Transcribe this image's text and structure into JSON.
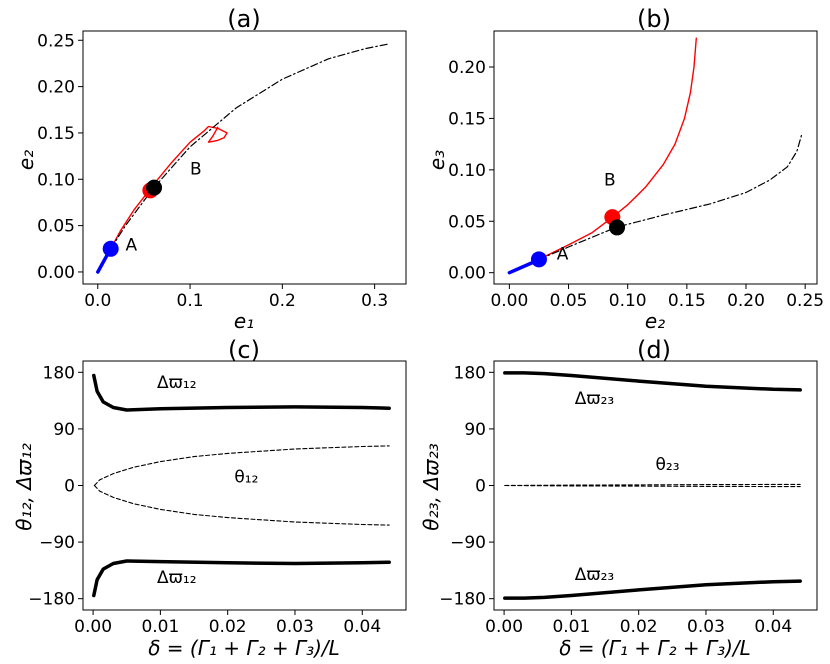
{
  "figure": {
    "panels": [
      {
        "id": "a",
        "title": "(a)",
        "xlabel": "e₁",
        "ylabel": "e₂",
        "xlim": [
          -0.016,
          0.334
        ],
        "ylim": [
          -0.013,
          0.26
        ],
        "xticks": [
          0.0,
          0.1,
          0.2,
          0.3
        ],
        "xtick_labels": [
          "0.0",
          "0.1",
          "0.2",
          "0.3"
        ],
        "yticks": [
          0.0,
          0.05,
          0.1,
          0.15,
          0.2,
          0.25
        ],
        "ytick_labels": [
          "0.00",
          "0.05",
          "0.10",
          "0.15",
          "0.20",
          "0.25"
        ],
        "annotations": [
          {
            "text": "A",
            "x": 0.03,
            "y": 0.023
          },
          {
            "text": "B",
            "x": 0.1,
            "y": 0.105
          }
        ]
      },
      {
        "id": "b",
        "title": "(b)",
        "xlabel": "e₂",
        "ylabel": "e₃",
        "xlim": [
          -0.013,
          0.26
        ],
        "ylim": [
          -0.011,
          0.235
        ],
        "xticks": [
          0.0,
          0.05,
          0.1,
          0.15,
          0.2,
          0.25
        ],
        "xtick_labels": [
          "0.00",
          "0.05",
          "0.10",
          "0.15",
          "0.20",
          "0.25"
        ],
        "yticks": [
          0.0,
          0.05,
          0.1,
          0.15,
          0.2
        ],
        "ytick_labels": [
          "0.00",
          "0.05",
          "0.10",
          "0.15",
          "0.20"
        ],
        "annotations": [
          {
            "text": "A",
            "x": 0.04,
            "y": 0.013
          },
          {
            "text": "B",
            "x": 0.08,
            "y": 0.085
          }
        ]
      },
      {
        "id": "c",
        "title": "(c)",
        "xlabel": "δ = (Γ₁ + Γ₂ + Γ₃)/L",
        "ylabel": "θ₁₂, Δϖ₁₂",
        "xlim": [
          -0.0015,
          0.0465
        ],
        "ylim": [
          -198,
          198
        ],
        "xticks": [
          0.0,
          0.01,
          0.02,
          0.03,
          0.04
        ],
        "xtick_labels": [
          "0.00",
          "0.01",
          "0.02",
          "0.03",
          "0.04"
        ],
        "yticks": [
          -180,
          -90,
          0,
          90,
          180
        ],
        "ytick_labels": [
          "−180",
          "−90",
          "0",
          "90",
          "180"
        ],
        "annotations": [
          {
            "text": "Δϖ₁₂",
            "x": 0.0095,
            "y": 155
          },
          {
            "text": "θ₁₂",
            "x": 0.021,
            "y": 5
          },
          {
            "text": "Δϖ₁₂",
            "x": 0.0095,
            "y": -155
          }
        ]
      },
      {
        "id": "d",
        "title": "(d)",
        "xlabel": "δ = (Γ₁ + Γ₂ + Γ₃)/L",
        "ylabel": "θ₂₃, Δϖ₂₃",
        "xlim": [
          -0.0015,
          0.0465
        ],
        "ylim": [
          -198,
          198
        ],
        "xticks": [
          0.0,
          0.01,
          0.02,
          0.03,
          0.04
        ],
        "xtick_labels": [
          "0.00",
          "0.01",
          "0.02",
          "0.03",
          "0.04"
        ],
        "yticks": [
          -180,
          -90,
          0,
          90,
          180
        ],
        "ytick_labels": [
          "−180",
          "−90",
          "0",
          "90",
          "180"
        ],
        "annotations": [
          {
            "text": "Δϖ₂₃",
            "x": 0.0105,
            "y": 130
          },
          {
            "text": "θ₂₃",
            "x": 0.0225,
            "y": 25
          },
          {
            "text": "Δϖ₂₃",
            "x": 0.0105,
            "y": -150
          }
        ]
      }
    ]
  },
  "chart_data": [
    {
      "type": "line",
      "panel": "a",
      "title": "(a)",
      "xlabel": "e1",
      "ylabel": "e2",
      "series": [
        {
          "name": "blue",
          "color": "#0000ff",
          "style": "solid-thick",
          "points": [
            [
              0.0,
              0.0
            ],
            [
              0.005,
              0.009
            ],
            [
              0.01,
              0.018
            ],
            [
              0.014,
              0.025
            ]
          ]
        },
        {
          "name": "red",
          "color": "#ff0000",
          "style": "solid",
          "points": [
            [
              0.014,
              0.025
            ],
            [
              0.025,
              0.045
            ],
            [
              0.04,
              0.068
            ],
            [
              0.055,
              0.087
            ],
            [
              0.065,
              0.1
            ],
            [
              0.08,
              0.118
            ],
            [
              0.1,
              0.14
            ],
            [
              0.115,
              0.152
            ],
            [
              0.12,
              0.157
            ],
            [
              0.13,
              0.155
            ],
            [
              0.14,
              0.15
            ],
            [
              0.137,
              0.145
            ],
            [
              0.13,
              0.142
            ],
            [
              0.12,
              0.14
            ],
            [
              0.125,
              0.147
            ],
            [
              0.13,
              0.156
            ]
          ]
        },
        {
          "name": "black dash-dot",
          "color": "#000000",
          "style": "dashdot",
          "points": [
            [
              0.014,
              0.025
            ],
            [
              0.03,
              0.05
            ],
            [
              0.06,
              0.09
            ],
            [
              0.1,
              0.135
            ],
            [
              0.15,
              0.177
            ],
            [
              0.2,
              0.208
            ],
            [
              0.25,
              0.23
            ],
            [
              0.29,
              0.241
            ],
            [
              0.315,
              0.246
            ]
          ]
        }
      ],
      "markers": [
        {
          "label": "A",
          "color": "#0000ff",
          "x": 0.014,
          "y": 0.025
        },
        {
          "label": "red",
          "color": "#ff0000",
          "x": 0.057,
          "y": 0.088
        },
        {
          "label": "black",
          "color": "#000000",
          "x": 0.061,
          "y": 0.091
        }
      ]
    },
    {
      "type": "line",
      "panel": "b",
      "title": "(b)",
      "xlabel": "e2",
      "ylabel": "e3",
      "series": [
        {
          "name": "blue",
          "color": "#0000ff",
          "style": "solid-thick",
          "points": [
            [
              0.0,
              0.0
            ],
            [
              0.01,
              0.005
            ],
            [
              0.02,
              0.01
            ],
            [
              0.025,
              0.013
            ]
          ]
        },
        {
          "name": "red",
          "color": "#ff0000",
          "style": "solid",
          "points": [
            [
              0.025,
              0.013
            ],
            [
              0.05,
              0.027
            ],
            [
              0.07,
              0.039
            ],
            [
              0.085,
              0.052
            ],
            [
              0.1,
              0.066
            ],
            [
              0.115,
              0.083
            ],
            [
              0.13,
              0.105
            ],
            [
              0.14,
              0.125
            ],
            [
              0.148,
              0.15
            ],
            [
              0.153,
              0.175
            ],
            [
              0.156,
              0.2
            ],
            [
              0.158,
              0.228
            ]
          ]
        },
        {
          "name": "black dash-dot",
          "color": "#000000",
          "style": "dashdot",
          "points": [
            [
              0.025,
              0.013
            ],
            [
              0.05,
              0.025
            ],
            [
              0.09,
              0.044
            ],
            [
              0.13,
              0.056
            ],
            [
              0.17,
              0.067
            ],
            [
              0.2,
              0.078
            ],
            [
              0.22,
              0.09
            ],
            [
              0.235,
              0.103
            ],
            [
              0.243,
              0.118
            ],
            [
              0.247,
              0.134
            ]
          ]
        }
      ],
      "markers": [
        {
          "label": "A",
          "color": "#0000ff",
          "x": 0.025,
          "y": 0.013
        },
        {
          "label": "B",
          "color": "#ff0000",
          "x": 0.087,
          "y": 0.054
        },
        {
          "label": "black",
          "color": "#000000",
          "x": 0.091,
          "y": 0.044
        }
      ]
    },
    {
      "type": "line",
      "panel": "c",
      "title": "(c)",
      "xlabel": "delta",
      "ylabel": "theta12, dvarpi12",
      "series": [
        {
          "name": "dvarpi12 upper",
          "color": "#000000",
          "style": "solid-thick",
          "points": [
            [
              0.0001,
              175
            ],
            [
              0.0006,
              150
            ],
            [
              0.0015,
              133
            ],
            [
              0.003,
              124
            ],
            [
              0.005,
              120
            ],
            [
              0.01,
              122
            ],
            [
              0.02,
              124
            ],
            [
              0.03,
              125
            ],
            [
              0.04,
              124
            ],
            [
              0.044,
              123
            ]
          ]
        },
        {
          "name": "dvarpi12 lower",
          "color": "#000000",
          "style": "solid-thick",
          "points": [
            [
              0.0001,
              -175
            ],
            [
              0.0006,
              -150
            ],
            [
              0.0015,
              -133
            ],
            [
              0.003,
              -124
            ],
            [
              0.005,
              -120
            ],
            [
              0.01,
              -121
            ],
            [
              0.02,
              -123
            ],
            [
              0.03,
              -124
            ],
            [
              0.04,
              -123
            ],
            [
              0.044,
              -122
            ]
          ]
        },
        {
          "name": "theta12 upper",
          "color": "#000000",
          "style": "dashed",
          "points": [
            [
              0.0002,
              0
            ],
            [
              0.001,
              9
            ],
            [
              0.003,
              19
            ],
            [
              0.006,
              29
            ],
            [
              0.01,
              38
            ],
            [
              0.015,
              46
            ],
            [
              0.02,
              51
            ],
            [
              0.03,
              58
            ],
            [
              0.04,
              62
            ],
            [
              0.044,
              63
            ]
          ]
        },
        {
          "name": "theta12 lower",
          "color": "#000000",
          "style": "dashed",
          "points": [
            [
              0.0002,
              0
            ],
            [
              0.001,
              -9
            ],
            [
              0.003,
              -19
            ],
            [
              0.006,
              -29
            ],
            [
              0.01,
              -38
            ],
            [
              0.015,
              -46
            ],
            [
              0.02,
              -51
            ],
            [
              0.03,
              -58
            ],
            [
              0.04,
              -62
            ],
            [
              0.044,
              -63
            ]
          ]
        }
      ]
    },
    {
      "type": "line",
      "panel": "d",
      "title": "(d)",
      "xlabel": "delta",
      "ylabel": "theta23, dvarpi23",
      "series": [
        {
          "name": "dvarpi23 upper",
          "color": "#000000",
          "style": "solid-thick",
          "points": [
            [
              0.0001,
              179
            ],
            [
              0.003,
              179
            ],
            [
              0.006,
              178
            ],
            [
              0.01,
              175
            ],
            [
              0.02,
              166
            ],
            [
              0.03,
              158
            ],
            [
              0.04,
              153
            ],
            [
              0.044,
              152
            ]
          ]
        },
        {
          "name": "dvarpi23 lower",
          "color": "#000000",
          "style": "solid-thick",
          "points": [
            [
              0.0001,
              -179
            ],
            [
              0.003,
              -179
            ],
            [
              0.006,
              -178
            ],
            [
              0.01,
              -175
            ],
            [
              0.02,
              -166
            ],
            [
              0.03,
              -158
            ],
            [
              0.04,
              -153
            ],
            [
              0.044,
              -152
            ]
          ]
        },
        {
          "name": "theta23 upper",
          "color": "#000000",
          "style": "dashed",
          "points": [
            [
              0.0001,
              0
            ],
            [
              0.01,
              0.6
            ],
            [
              0.02,
              1.0
            ],
            [
              0.03,
              1.4
            ],
            [
              0.044,
              1.8
            ]
          ]
        },
        {
          "name": "theta23 lower",
          "color": "#000000",
          "style": "dashed",
          "points": [
            [
              0.0001,
              0
            ],
            [
              0.01,
              -0.6
            ],
            [
              0.02,
              -1.0
            ],
            [
              0.03,
              -1.4
            ],
            [
              0.044,
              -1.8
            ]
          ]
        }
      ]
    }
  ]
}
